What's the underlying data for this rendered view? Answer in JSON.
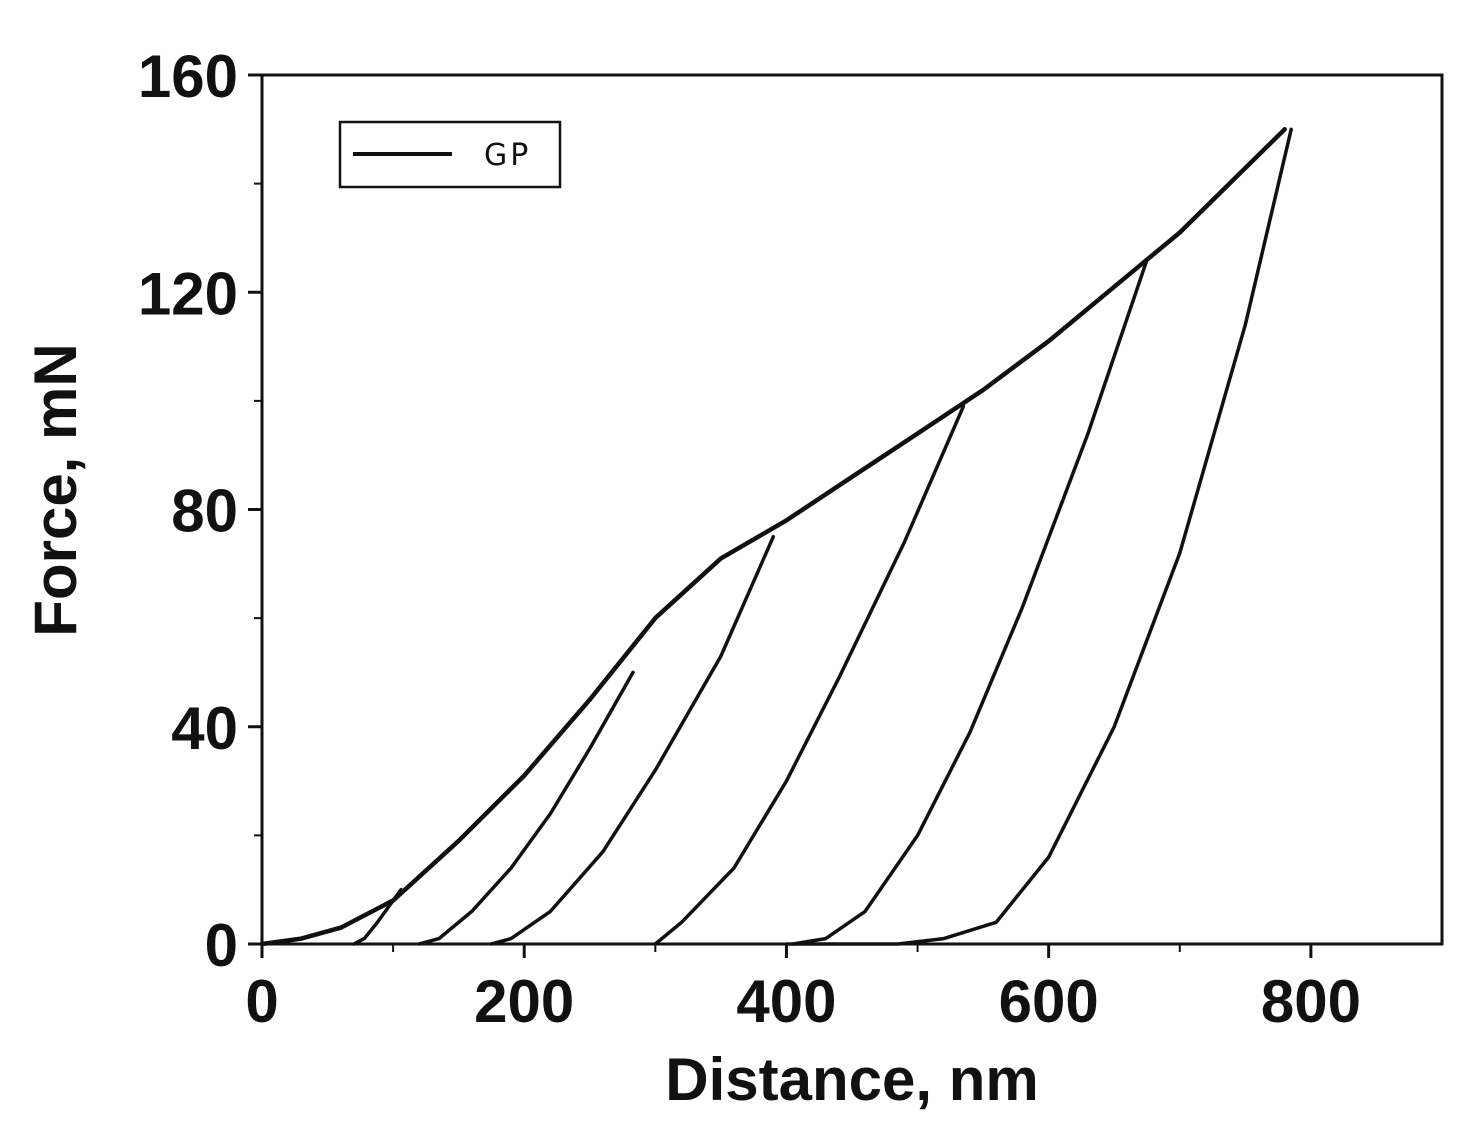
{
  "chart_data": {
    "type": "line",
    "title": "",
    "xlabel": "Distance, nm",
    "ylabel": "Force, mN",
    "xlim": [
      0,
      900
    ],
    "ylim": [
      0,
      160
    ],
    "x_ticks": [
      0,
      200,
      400,
      600,
      800
    ],
    "x_tick_labels": [
      "0",
      "200",
      "400",
      "600",
      "800"
    ],
    "y_ticks": [
      0,
      40,
      80,
      120,
      160
    ],
    "y_tick_labels": [
      "0",
      "40",
      "80",
      "120",
      "160"
    ],
    "grid": false,
    "legend_position": "top-left",
    "legend": [
      "GP"
    ],
    "line_color": "#111111",
    "series": [
      {
        "name": "GP",
        "segments": [
          {
            "part": "loading",
            "points": [
              [
                0,
                0
              ],
              [
                30,
                1
              ],
              [
                60,
                3
              ],
              [
                100,
                8
              ],
              [
                150,
                19
              ],
              [
                200,
                31
              ],
              [
                250,
                45
              ],
              [
                300,
                60
              ],
              [
                350,
                71
              ],
              [
                400,
                78
              ],
              [
                450,
                86
              ],
              [
                500,
                94
              ],
              [
                550,
                102
              ],
              [
                600,
                111
              ],
              [
                650,
                121
              ],
              [
                700,
                131
              ],
              [
                780,
                150
              ]
            ]
          },
          {
            "part": "unloading-1",
            "points": [
              [
                106,
                10
              ],
              [
                97,
                7
              ],
              [
                88,
                4
              ],
              [
                78,
                1
              ],
              [
                70,
                0
              ]
            ]
          },
          {
            "part": "unloading-2",
            "points": [
              [
                283,
                50
              ],
              [
                250,
                36
              ],
              [
                220,
                24
              ],
              [
                190,
                14
              ],
              [
                160,
                6
              ],
              [
                135,
                1
              ],
              [
                120,
                0
              ]
            ]
          },
          {
            "part": "unloading-3",
            "points": [
              [
                390,
                75
              ],
              [
                350,
                53
              ],
              [
                300,
                32
              ],
              [
                260,
                17
              ],
              [
                220,
                6
              ],
              [
                190,
                1
              ],
              [
                175,
                0
              ]
            ]
          },
          {
            "part": "unloading-4",
            "points": [
              [
                535,
                99
              ],
              [
                490,
                74
              ],
              [
                440,
                49
              ],
              [
                400,
                30
              ],
              [
                360,
                14
              ],
              [
                320,
                4
              ],
              [
                300,
                0
              ]
            ]
          },
          {
            "part": "unloading-5",
            "points": [
              [
                675,
                126
              ],
              [
                630,
                94
              ],
              [
                580,
                62
              ],
              [
                540,
                39
              ],
              [
                500,
                20
              ],
              [
                460,
                6
              ],
              [
                430,
                1
              ],
              [
                405,
                0
              ]
            ]
          },
          {
            "part": "unloading-6",
            "points": [
              [
                785,
                150
              ],
              [
                750,
                114
              ],
              [
                700,
                72
              ],
              [
                650,
                40
              ],
              [
                600,
                16
              ],
              [
                560,
                4
              ],
              [
                520,
                1
              ],
              [
                485,
                0
              ],
              [
                400,
                0
              ]
            ]
          }
        ]
      }
    ]
  }
}
